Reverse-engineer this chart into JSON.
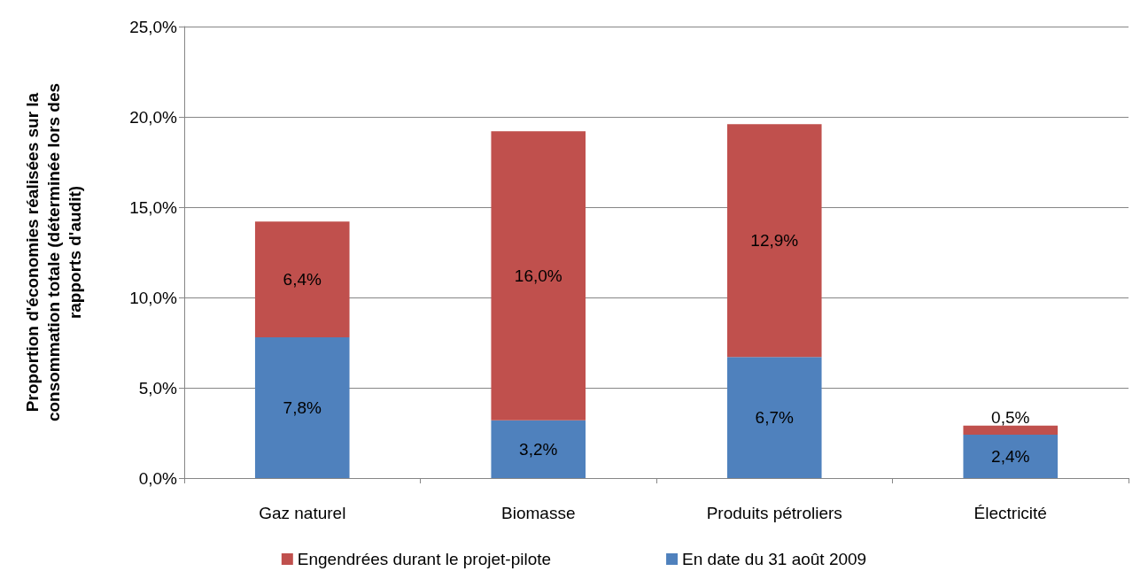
{
  "chart_data": {
    "type": "bar",
    "stacked": true,
    "ylabel": "Proportion d'économies réalisées sur la consommation totale (déterminée lors des rapports d'audit)",
    "categories": [
      "Gaz naturel",
      "Biomasse",
      "Produits pétroliers",
      "Électricité"
    ],
    "series": [
      {
        "name": "En date du 31 août 2009",
        "color": "#4f81bd",
        "values": [
          7.8,
          3.2,
          6.7,
          2.4
        ],
        "value_labels": [
          "7,8%",
          "3,2%",
          "6,7%",
          "2,4%"
        ]
      },
      {
        "name": "Engendrées durant le projet-pilote",
        "color": "#c0504d",
        "values": [
          6.4,
          16.0,
          12.9,
          0.5
        ],
        "value_labels": [
          "6,4%",
          "16,0%",
          "12,9%",
          "0,5%"
        ]
      }
    ],
    "ylim": [
      0,
      25
    ],
    "yticks": [
      {
        "value": 0,
        "label": "0,0%"
      },
      {
        "value": 5,
        "label": "5,0%"
      },
      {
        "value": 10,
        "label": "10,0%"
      },
      {
        "value": 15,
        "label": "15,0%"
      },
      {
        "value": 20,
        "label": "20,0%"
      },
      {
        "value": 25,
        "label": "25,0%"
      }
    ],
    "grid": "y",
    "legend": "bottom"
  }
}
